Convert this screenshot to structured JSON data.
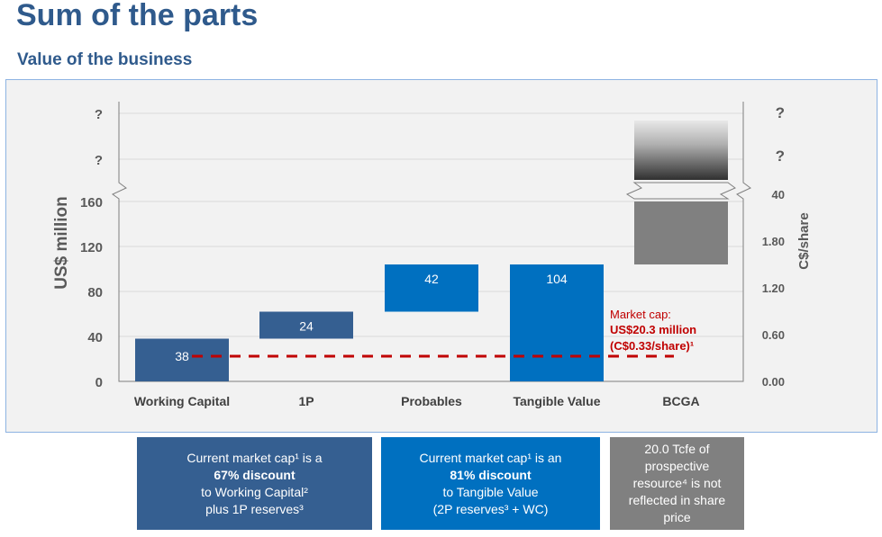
{
  "title": "Sum of the parts",
  "subtitle": "Value of the business",
  "chart_data": {
    "type": "waterfall-bar",
    "categories": [
      "Working Capital",
      "1P",
      "Probables",
      "Tangible Value",
      "BCGA"
    ],
    "bars": [
      {
        "category": "Working Capital",
        "base": 0,
        "value": 38,
        "label": "38",
        "color": "#355f91"
      },
      {
        "category": "1P",
        "base": 38,
        "value": 24,
        "label": "24",
        "color": "#355f91"
      },
      {
        "category": "Probables",
        "base": 62,
        "value": 42,
        "label": "42",
        "color": "#0070c0"
      },
      {
        "category": "Tangible Value",
        "base": 0,
        "value": 104,
        "label": "104",
        "color": "#0070c0"
      },
      {
        "category": "BCGA",
        "base": 104,
        "value": 56,
        "label": "",
        "color": "#808080",
        "broken_top": true
      }
    ],
    "ylabel_left": "US$ million",
    "ylabel_right": "C$/share",
    "left_ticks": [
      "0",
      "40",
      "80",
      "120",
      "160",
      "?",
      "?"
    ],
    "left_tick_values": [
      0,
      40,
      80,
      120,
      160
    ],
    "right_ticks": [
      "0.00",
      "0.60",
      "1.20",
      "1.80",
      "40",
      "?",
      "?"
    ],
    "ylim": [
      0,
      160
    ],
    "market_cap": {
      "value": 20.3,
      "label_line1": "Market cap:",
      "label_line2": "US$20.3 million",
      "label_line3": "(C$0.33/share)¹",
      "color": "#c00000"
    }
  },
  "boxes": [
    {
      "l1": "Current market cap¹ is a",
      "l2": "67% discount",
      "l3": "to Working Capital²",
      "l4": "plus 1P reserves³",
      "color": "#355f91"
    },
    {
      "l1": "Current market cap¹ is an",
      "l2": "81% discount",
      "l3": "to Tangible Value",
      "l4": "(2P reserves³ + WC)",
      "color": "#0070c0"
    },
    {
      "l1": "20.0 Tcfe of",
      "l2": "prospective",
      "l3": "resource⁴ is not",
      "l4": "reflected in share",
      "l5": "price",
      "color": "#808080"
    }
  ]
}
